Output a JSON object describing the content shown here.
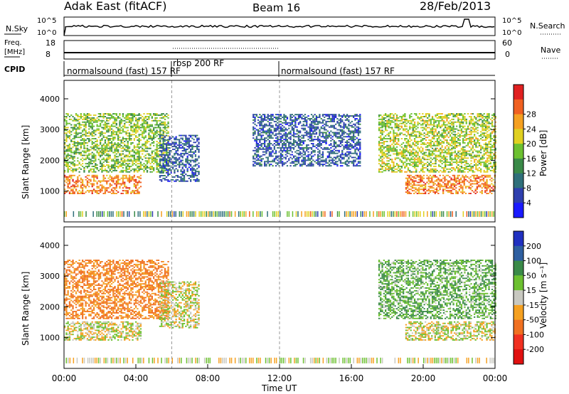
{
  "header": {
    "site": "Adak East (fitACF)",
    "beam": "Beam 16",
    "date": "28/Feb/2013"
  },
  "param_rows": {
    "nsky_label": "N.Sky",
    "nsky_ticks": [
      "10^5",
      "10^0"
    ],
    "nsearch_label": "N.Search",
    "nsearch_ticks": [
      "10^5",
      "10^0"
    ],
    "freq_label_top": "Freq.",
    "freq_label_bottom": "[MHz]",
    "freq_ticks": [
      "18",
      "8"
    ],
    "nave_label": "Nave",
    "nave_ticks": [
      "60",
      "0"
    ],
    "cpid_label": "CPID",
    "cpid_segments": [
      {
        "label": "normalsound (fast) 157 RF",
        "start": 0,
        "end": 6
      },
      {
        "label": "rbsp 200 RF",
        "start": 6,
        "end": 12
      },
      {
        "label": "normalsound (fast) 157 RF",
        "start": 12,
        "end": 24
      }
    ]
  },
  "chart_data": [
    {
      "type": "heatmap",
      "name": "power",
      "ylabel": "Slant Range [km]",
      "yticks": [
        1000,
        2000,
        3000,
        4000
      ],
      "ylim": [
        0,
        4600
      ],
      "xlim": [
        0,
        24
      ],
      "colorbar": {
        "label": "Power [dB]",
        "ticks": [
          "4",
          "8",
          "12",
          "16",
          "20",
          "24",
          "28"
        ],
        "colors": [
          "#1a1aff",
          "#2e3fae",
          "#2f6f7a",
          "#3a8a48",
          "#6cc030",
          "#e0d020",
          "#f5a020",
          "#f06020",
          "#e02020"
        ]
      },
      "bands": [
        {
          "range_km": [
            900,
            1500
          ],
          "time": [
            0,
            4.3
          ],
          "level_db": 26
        },
        {
          "range_km": [
            1600,
            3500
          ],
          "time": [
            0,
            5.8
          ],
          "level_db": 16
        },
        {
          "range_km": [
            1300,
            2800
          ],
          "time": [
            5.3,
            7.5
          ],
          "level_db": 6
        },
        {
          "range_km": [
            900,
            1500
          ],
          "time": [
            19.0,
            24
          ],
          "level_db": 26
        },
        {
          "range_km": [
            1600,
            3500
          ],
          "time": [
            17.5,
            24
          ],
          "level_db": 18
        },
        {
          "range_km": [
            1800,
            3500
          ],
          "time": [
            10.5,
            16.5
          ],
          "level_db": 6
        }
      ]
    },
    {
      "type": "heatmap",
      "name": "velocity",
      "ylabel": "Slant Range [km]",
      "yticks": [
        1000,
        2000,
        3000,
        4000
      ],
      "ylim": [
        0,
        4600
      ],
      "xlim": [
        0,
        24
      ],
      "xlabel": "Time UT",
      "xticks": [
        "00:00",
        "04:00",
        "08:00",
        "12:00",
        "16:00",
        "20:00",
        "00:00"
      ],
      "colorbar": {
        "label": "Velocity [m s⁻¹]",
        "ticks": [
          "200",
          "100",
          "50",
          "15",
          "-15",
          "-50",
          "-100",
          "-200"
        ],
        "colors": [
          "#2030c0",
          "#2e5fa0",
          "#3a8a48",
          "#6cc030",
          "#c8c8c0",
          "#f5a020",
          "#f07020",
          "#f03020",
          "#e01010"
        ]
      },
      "bands": [
        {
          "range_km": [
            900,
            1500
          ],
          "time": [
            0,
            4.3
          ],
          "velocity": 0
        },
        {
          "range_km": [
            1600,
            3500
          ],
          "time": [
            0,
            5.8
          ],
          "velocity": -40
        },
        {
          "range_km": [
            1300,
            2800
          ],
          "time": [
            5.3,
            7.5
          ],
          "velocity": 0
        },
        {
          "range_km": [
            900,
            1500
          ],
          "time": [
            19.0,
            24
          ],
          "velocity": 0
        },
        {
          "range_km": [
            1600,
            3500
          ],
          "time": [
            17.5,
            24
          ],
          "velocity": 30
        }
      ]
    }
  ]
}
